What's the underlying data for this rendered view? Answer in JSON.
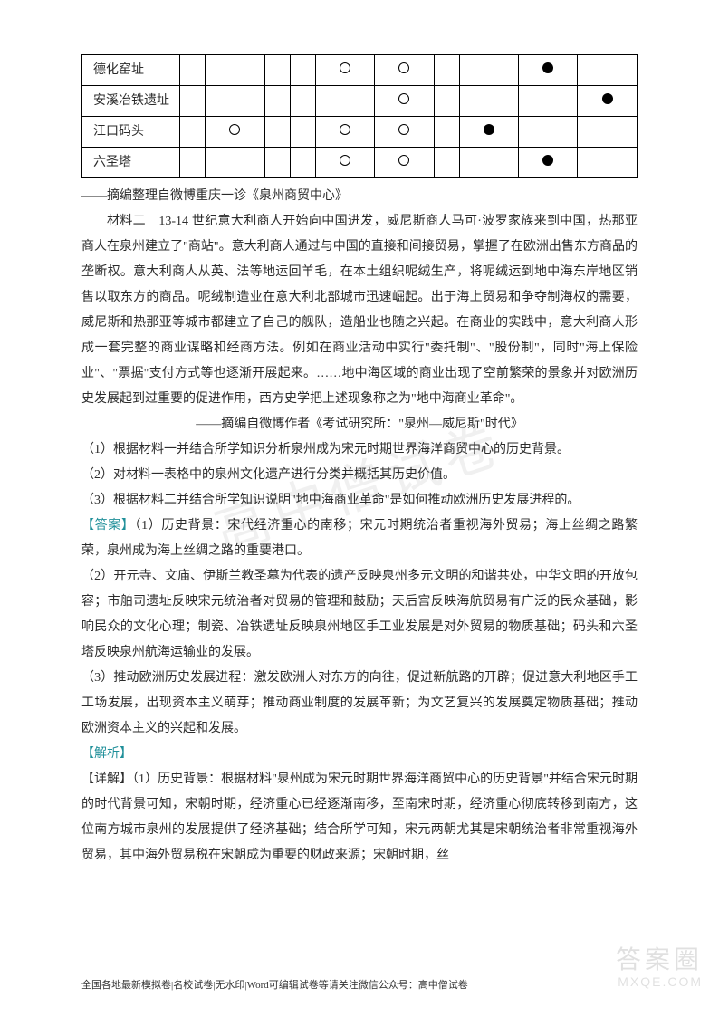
{
  "table": {
    "row_label_width": 108,
    "data_cols": 10,
    "rows": [
      {
        "label": "德化窑址",
        "cells": [
          "",
          "",
          "",
          "",
          "○",
          "○",
          "",
          "",
          "●",
          ""
        ]
      },
      {
        "label": "安溪冶铁遗址",
        "cells": [
          "",
          "",
          "",
          "",
          "",
          "○",
          "",
          "",
          "",
          "●"
        ]
      },
      {
        "label": "江口码头",
        "cells": [
          "",
          "○",
          "",
          "",
          "○",
          "○",
          "",
          "●",
          "",
          ""
        ]
      },
      {
        "label": "六圣塔",
        "cells": [
          "",
          "",
          "",
          "",
          "○",
          "○",
          "",
          "",
          "●",
          ""
        ]
      }
    ]
  },
  "source1": "——摘编整理自微博重庆一诊《泉州商贸中心》",
  "material2": "材料二　13-14 世纪意大利商人开始向中国进发，威尼斯商人马可·波罗家族来到中国，热那亚商人在泉州建立了\"商站\"。意大利商人通过与中国的直接和间接贸易，掌握了在欧洲出售东方商品的垄断权。意大利商人从英、法等地运回羊毛，在本土组织呢绒生产，将呢绒运到地中海东岸地区销售以取东方的商品。呢绒制造业在意大利北部城市迅速崛起。出于海上贸易和争夺制海权的需要，威尼斯和热那亚等城市都建立了自己的舰队，造船业也随之兴起。在商业的实践中，意大利商人形成一套完整的商业谋略和经商方法。例如在商业活动中实行\"委托制\"、\"股份制\"，同时\"海上保险业\"、\"票据\"支付方式等也逐渐开展起来。……地中海区域的商业出现了空前繁荣的景象并对欧洲历史发展起到过重要的促进作用，西方史学把上述现象称之为\"地中海商业革命\"。",
  "source2": "——摘编自微博作者《考试研究所：\"泉州—威尼斯\"时代》",
  "q1": "（1）根据材料一并结合所学知识分析泉州成为宋元时期世界海洋商贸中心的历史背景。",
  "q2": "（2）对材料一表格中的泉州文化遗产进行分类并概括其历史价值。",
  "q3": "（3）根据材料二并结合所学知识说明\"地中海商业革命\"是如何推动欧洲历史发展进程的。",
  "answer_label": "【答案】",
  "ans1": "（1）历史背景：宋代经济重心的南移；宋元时期统治者重视海外贸易；海上丝绸之路繁荣，泉州成为海上丝绸之路的重要港口。",
  "ans2": "（2）开元寺、文庙、伊斯兰教圣墓为代表的遗产反映泉州多元文明的和谐共处，中华文明的开放包容；市舶司遗址反映宋元统治者对贸易的管理和鼓励；天后宫反映海航贸易有广泛的民众基础，影响民众的文化心理；制瓷、冶铁遗址反映泉州地区手工业发展是对外贸易的物质基础；码头和六圣塔反映泉州航海运输业的发展。",
  "ans3": "（3）推动欧洲历史发展进程：激发欧洲人对东方的向往，促进新航路的开辟；促进意大利地区手工工场发展，出现资本主义萌芽；推动商业制度的发展革新；为文艺复兴的发展奠定物质基础；推动欧洲资本主义的兴起和发展。",
  "analysis_label": "【解析】",
  "analysis_body": "【详解】（1）历史背景：根据材料\"泉州成为宋元时期世界海洋商贸中心的历史背景\"并结合宋元时期的时代背景可知，宋朝时期，经济重心已经逐渐南移，至南宋时期，经济重心彻底转移到南方，这位南方城市泉州的发展提供了经济基础；结合所学可知，宋元两朝尤其是宋朝统治者非常重视海外贸易，其中海外贸易税在宋朝成为重要的财政来源；宋朝时期，丝",
  "footer": "全国各地最新模拟卷|名校试卷|无水印|Word可编辑试卷等请关注微信公众号：高中僧试卷",
  "watermark_center": "高中僧试卷",
  "watermark_corner_cn": "答案圈",
  "watermark_corner_en": "MXQE.COM",
  "colors": {
    "text": "#2b2b2b",
    "accent": "#1f8f99",
    "border": "#000000",
    "background": "#ffffff",
    "wm_light": "rgba(0,0,0,0.06)"
  }
}
